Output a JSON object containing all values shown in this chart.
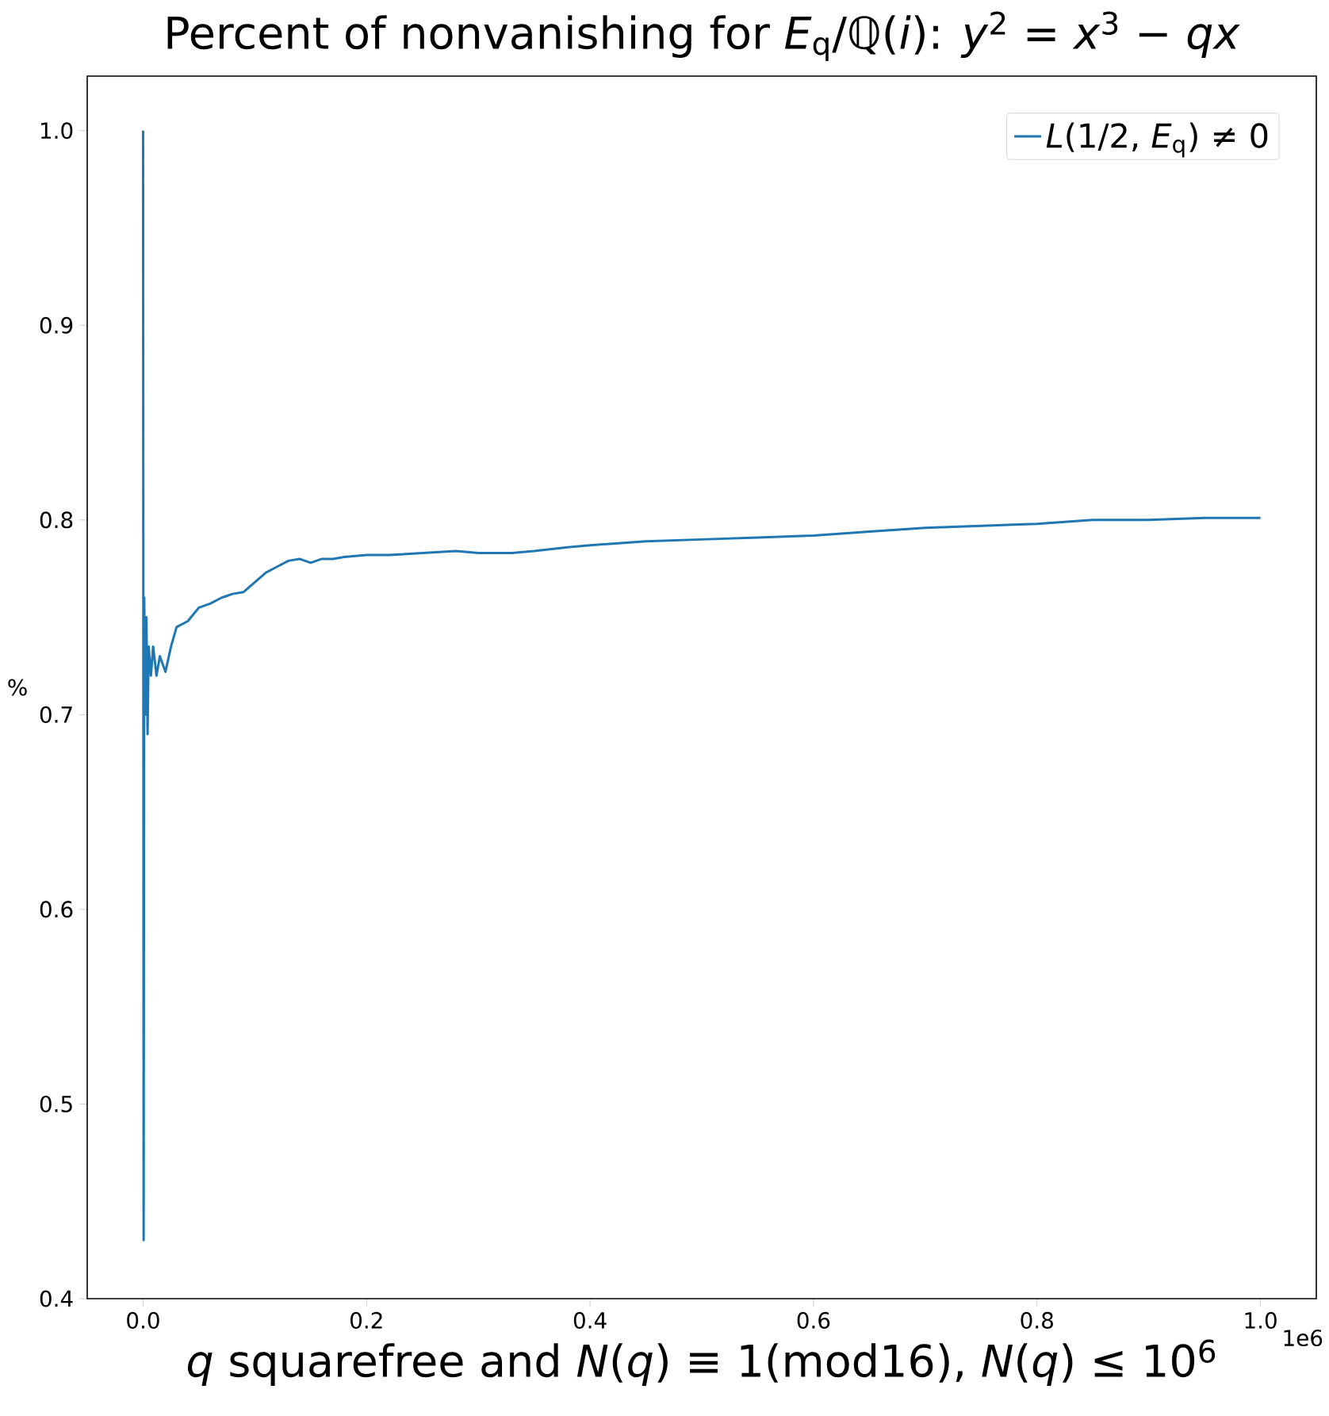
{
  "chart_data": {
    "type": "line",
    "title": "Percent of nonvanishing for *E*$_{q}$/ℚ(*i*): *y*$^{2}$ = *x*$^{3}$ − *qx*",
    "xlabel": "*q* squarefree and *N*(*q*) ≡ 1(mod16), *N*(*q*) ≤ 10$^{6}$",
    "ylabel": "%",
    "x": [
      0,
      0.0005,
      0.001,
      0.002,
      0.003,
      0.004,
      0.005,
      0.007,
      0.009,
      0.012,
      0.015,
      0.02,
      0.025,
      0.03,
      0.04,
      0.05,
      0.06,
      0.07,
      0.08,
      0.09,
      0.1,
      0.11,
      0.12,
      0.13,
      0.14,
      0.15,
      0.16,
      0.17,
      0.18,
      0.2,
      0.22,
      0.25,
      0.28,
      0.3,
      0.33,
      0.35,
      0.38,
      0.4,
      0.45,
      0.5,
      0.55,
      0.6,
      0.65,
      0.7,
      0.75,
      0.8,
      0.85,
      0.9,
      0.95,
      1.0
    ],
    "series": [
      {
        "name": "*L*(1/2, *E*$_{q}$) ≠ 0",
        "color": "#1f77b4",
        "values": [
          1.0,
          0.43,
          0.76,
          0.7,
          0.75,
          0.69,
          0.735,
          0.72,
          0.735,
          0.72,
          0.73,
          0.722,
          0.735,
          0.745,
          0.748,
          0.755,
          0.757,
          0.76,
          0.762,
          0.763,
          0.768,
          0.773,
          0.776,
          0.779,
          0.78,
          0.778,
          0.78,
          0.78,
          0.781,
          0.782,
          0.782,
          0.783,
          0.784,
          0.783,
          0.783,
          0.784,
          0.786,
          0.787,
          0.789,
          0.79,
          0.791,
          0.792,
          0.794,
          0.796,
          0.797,
          0.798,
          0.8,
          0.8,
          0.801,
          0.801
        ]
      }
    ],
    "xlim": [
      -0.05,
      1.05
    ],
    "ylim": [
      0.4,
      1.028
    ],
    "xticks": [
      {
        "value": 0,
        "label": "0.0"
      },
      0.2,
      0.4,
      0.6,
      0.8,
      {
        "value": 1.0,
        "label": "1.0"
      }
    ],
    "yticks": [
      {
        "value": 0.4,
        "label": "0.4"
      },
      {
        "value": 0.5,
        "label": "0.5"
      },
      {
        "value": 0.6,
        "label": "0.6"
      },
      {
        "value": 0.7,
        "label": "0.7"
      },
      {
        "value": 0.8,
        "label": "0.8"
      },
      {
        "value": 0.9,
        "label": "0.9"
      },
      {
        "value": 1.0,
        "label": "1.0"
      }
    ],
    "legend": "top right",
    "annotations": [
      "1e6"
    ]
  }
}
